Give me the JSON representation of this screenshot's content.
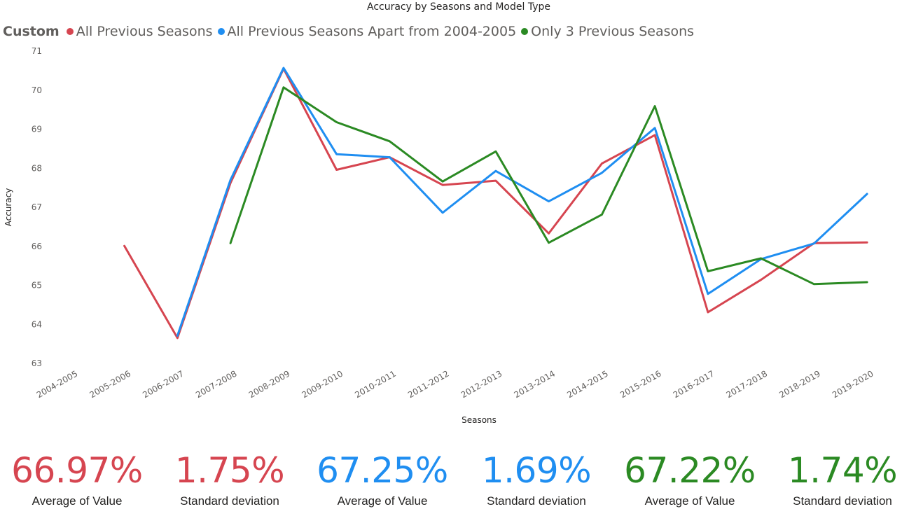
{
  "chart_data": {
    "type": "line",
    "title": "Accuracy by Seasons and Model Type",
    "xlabel": "Seasons",
    "ylabel": "Accuracy",
    "ylim": [
      63,
      71
    ],
    "yticks": [
      63,
      64,
      65,
      66,
      67,
      68,
      69,
      70,
      71
    ],
    "grid": false,
    "legend_position": "top-left",
    "legend_title": "Custom",
    "categories": [
      "2004-2005",
      "2005-2006",
      "2006-2007",
      "2007-2008",
      "2008-2009",
      "2009-2010",
      "2010-2011",
      "2011-2012",
      "2012-2013",
      "2013-2014",
      "2014-2015",
      "2015-2016",
      "2016-2017",
      "2017-2018",
      "2018-2019",
      "2019-2020"
    ],
    "series": [
      {
        "name": "All Previous Seasons",
        "color": "#d64550",
        "values": [
          null,
          66.01,
          63.65,
          67.62,
          70.55,
          67.96,
          68.28,
          67.57,
          67.68,
          66.33,
          68.12,
          68.85,
          64.31,
          65.14,
          66.08,
          66.1
        ]
      },
      {
        "name": "All Previous Seasons Apart from 2004-2005",
        "color": "#1f8ef1",
        "values": [
          null,
          null,
          63.71,
          67.7,
          70.57,
          68.36,
          68.28,
          66.86,
          67.93,
          67.15,
          67.88,
          69.03,
          64.78,
          65.67,
          66.07,
          67.34
        ]
      },
      {
        "name": "Only 3 Previous Seasons",
        "color": "#2b8a23",
        "values": [
          null,
          null,
          null,
          66.08,
          70.07,
          69.18,
          68.69,
          67.66,
          68.43,
          66.09,
          66.81,
          69.59,
          65.36,
          65.69,
          65.03,
          65.08
        ]
      }
    ]
  },
  "kpis": [
    {
      "value": "66.97%",
      "label": "Average of Value",
      "color": "#d64550"
    },
    {
      "value": "1.75%",
      "label": "Standard deviation",
      "color": "#d64550"
    },
    {
      "value": "67.25%",
      "label": "Average of Value",
      "color": "#1f8ef1"
    },
    {
      "value": "1.69%",
      "label": "Standard deviation",
      "color": "#1f8ef1"
    },
    {
      "value": "67.22%",
      "label": "Average of Value",
      "color": "#2b8a23"
    },
    {
      "value": "1.74%",
      "label": "Standard deviation",
      "color": "#2b8a23"
    }
  ]
}
